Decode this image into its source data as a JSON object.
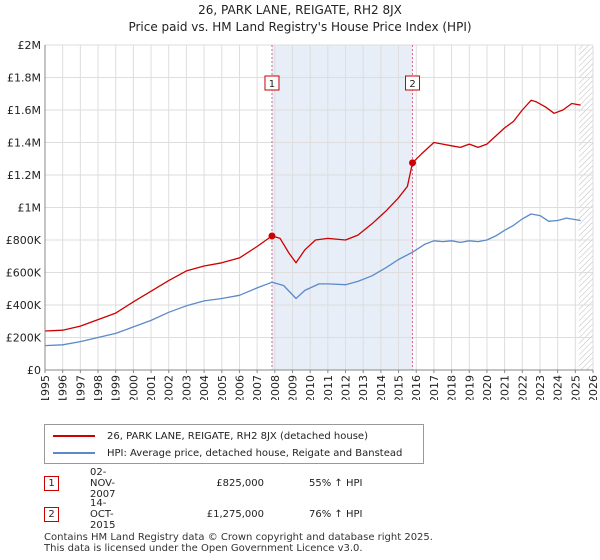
{
  "title_line1": "26, PARK LANE, REIGATE, RH2 8JX",
  "title_line2": "Price paid vs. HM Land Registry's House Price Index (HPI)",
  "chart_data": {
    "type": "line",
    "xlabel": "",
    "ylabel": "",
    "xlim": [
      1995,
      2026
    ],
    "ylim": [
      0,
      2000000
    ],
    "y_ticks": [
      {
        "value": 0,
        "label": "£0"
      },
      {
        "value": 200000,
        "label": "£200K"
      },
      {
        "value": 400000,
        "label": "£400K"
      },
      {
        "value": 600000,
        "label": "£600K"
      },
      {
        "value": 800000,
        "label": "£800K"
      },
      {
        "value": 1000000,
        "label": "£1M"
      },
      {
        "value": 1200000,
        "label": "£1.2M"
      },
      {
        "value": 1400000,
        "label": "£1.4M"
      },
      {
        "value": 1600000,
        "label": "£1.6M"
      },
      {
        "value": 1800000,
        "label": "£1.8M"
      },
      {
        "value": 2000000,
        "label": "£2M"
      }
    ],
    "x_ticks": [
      "1995",
      "1996",
      "1997",
      "1998",
      "1999",
      "2000",
      "2001",
      "2002",
      "2003",
      "2004",
      "2005",
      "2006",
      "2007",
      "2008",
      "2009",
      "2010",
      "2011",
      "2012",
      "2013",
      "2014",
      "2015",
      "2016",
      "2017",
      "2018",
      "2019",
      "2020",
      "2021",
      "2022",
      "2023",
      "2024",
      "2025",
      "2026"
    ],
    "shaded_period": {
      "from": 2007.84,
      "to": 2015.79
    },
    "future_hatch_from": 2025.2,
    "colors": {
      "property": "#cc0000",
      "hpi": "#5b8ac9",
      "shade": "#e8eef8",
      "grid": "#dddddd",
      "vline": "#dd6688"
    },
    "series": [
      {
        "name": "26, PARK LANE, REIGATE, RH2 8JX (detached house)",
        "key": "property",
        "points": [
          [
            1995.0,
            240000
          ],
          [
            1996.0,
            245000
          ],
          [
            1997.0,
            270000
          ],
          [
            1998.0,
            310000
          ],
          [
            1999.0,
            350000
          ],
          [
            2000.0,
            420000
          ],
          [
            2001.0,
            485000
          ],
          [
            2002.0,
            550000
          ],
          [
            2003.0,
            610000
          ],
          [
            2004.0,
            640000
          ],
          [
            2005.0,
            660000
          ],
          [
            2006.0,
            690000
          ],
          [
            2007.0,
            760000
          ],
          [
            2007.84,
            825000
          ],
          [
            2008.3,
            810000
          ],
          [
            2008.8,
            720000
          ],
          [
            2009.2,
            660000
          ],
          [
            2009.7,
            740000
          ],
          [
            2010.3,
            800000
          ],
          [
            2011.0,
            810000
          ],
          [
            2012.0,
            800000
          ],
          [
            2012.7,
            830000
          ],
          [
            2013.5,
            900000
          ],
          [
            2014.3,
            980000
          ],
          [
            2015.0,
            1060000
          ],
          [
            2015.5,
            1130000
          ],
          [
            2015.79,
            1275000
          ],
          [
            2016.3,
            1330000
          ],
          [
            2017.0,
            1400000
          ],
          [
            2017.5,
            1390000
          ],
          [
            2018.0,
            1380000
          ],
          [
            2018.5,
            1370000
          ],
          [
            2019.0,
            1390000
          ],
          [
            2019.5,
            1370000
          ],
          [
            2020.0,
            1390000
          ],
          [
            2020.5,
            1440000
          ],
          [
            2021.0,
            1490000
          ],
          [
            2021.5,
            1530000
          ],
          [
            2022.0,
            1600000
          ],
          [
            2022.5,
            1660000
          ],
          [
            2022.8,
            1650000
          ],
          [
            2023.3,
            1620000
          ],
          [
            2023.8,
            1580000
          ],
          [
            2024.3,
            1600000
          ],
          [
            2024.8,
            1640000
          ],
          [
            2025.3,
            1630000
          ]
        ]
      },
      {
        "name": "HPI: Average price, detached house, Reigate and Banstead",
        "key": "hpi",
        "points": [
          [
            1995.0,
            150000
          ],
          [
            1996.0,
            155000
          ],
          [
            1997.0,
            175000
          ],
          [
            1998.0,
            200000
          ],
          [
            1999.0,
            225000
          ],
          [
            2000.0,
            265000
          ],
          [
            2001.0,
            305000
          ],
          [
            2002.0,
            355000
          ],
          [
            2003.0,
            395000
          ],
          [
            2004.0,
            425000
          ],
          [
            2005.0,
            440000
          ],
          [
            2006.0,
            460000
          ],
          [
            2007.0,
            505000
          ],
          [
            2007.84,
            540000
          ],
          [
            2008.5,
            520000
          ],
          [
            2009.2,
            440000
          ],
          [
            2009.7,
            490000
          ],
          [
            2010.5,
            530000
          ],
          [
            2011.0,
            530000
          ],
          [
            2012.0,
            525000
          ],
          [
            2012.7,
            545000
          ],
          [
            2013.5,
            580000
          ],
          [
            2014.3,
            630000
          ],
          [
            2015.0,
            680000
          ],
          [
            2015.79,
            725000
          ],
          [
            2016.5,
            775000
          ],
          [
            2017.0,
            795000
          ],
          [
            2017.5,
            790000
          ],
          [
            2018.0,
            795000
          ],
          [
            2018.5,
            785000
          ],
          [
            2019.0,
            795000
          ],
          [
            2019.5,
            790000
          ],
          [
            2020.0,
            800000
          ],
          [
            2020.5,
            825000
          ],
          [
            2021.0,
            860000
          ],
          [
            2021.5,
            890000
          ],
          [
            2022.0,
            930000
          ],
          [
            2022.5,
            960000
          ],
          [
            2023.0,
            950000
          ],
          [
            2023.5,
            915000
          ],
          [
            2024.0,
            920000
          ],
          [
            2024.5,
            935000
          ],
          [
            2025.3,
            920000
          ]
        ]
      }
    ],
    "annotations": [
      {
        "label": "1",
        "x": 2007.84,
        "value": 825000
      },
      {
        "label": "2",
        "x": 2015.79,
        "value": 1275000
      }
    ]
  },
  "legend": {
    "property_label": "26, PARK LANE, REIGATE, RH2 8JX (detached house)",
    "hpi_label": "HPI: Average price, detached house, Reigate and Banstead"
  },
  "transactions": [
    {
      "num": "1",
      "date": "02-NOV-2007",
      "price": "£825,000",
      "hpi": "55% ↑ HPI"
    },
    {
      "num": "2",
      "date": "14-OCT-2015",
      "price": "£1,275,000",
      "hpi": "76% ↑ HPI"
    }
  ],
  "footer_line1": "Contains HM Land Registry data © Crown copyright and database right 2025.",
  "footer_line2": "This data is licensed under the Open Government Licence v3.0."
}
